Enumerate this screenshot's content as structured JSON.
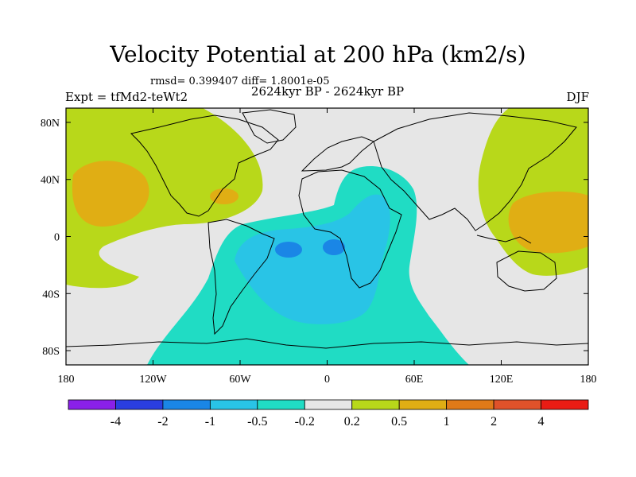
{
  "chart_data": {
    "type": "contour-map",
    "title": "Velocity Potential at 200 hPa (km2/s)",
    "stats_text": "rmsd= 0.399407 diff= 1.8001e-05",
    "period": "2624kyr BP - 2624kyr BP",
    "experiment": "Expt = tfMd2-teWt2",
    "season": "DJF",
    "x_ticks": [
      "180",
      "120W",
      "60W",
      "0",
      "60E",
      "120E",
      "180"
    ],
    "y_ticks": [
      "80N",
      "40N",
      "0",
      "40S",
      "80S"
    ],
    "xlim": [
      -180,
      180
    ],
    "ylim": [
      -90,
      90
    ],
    "contour_levels": [
      "-4",
      "-2",
      "-1",
      "-0.5",
      "-0.2",
      "0.2",
      "0.5",
      "1",
      "2",
      "4"
    ],
    "colors": [
      "#8a20e8",
      "#2a3ee0",
      "#1a86e6",
      "#29c4e6",
      "#20dcc4",
      "#e6e6e6",
      "#b8d81a",
      "#e0ae14",
      "#e07a18",
      "#e0522a",
      "#ea1c14"
    ]
  }
}
